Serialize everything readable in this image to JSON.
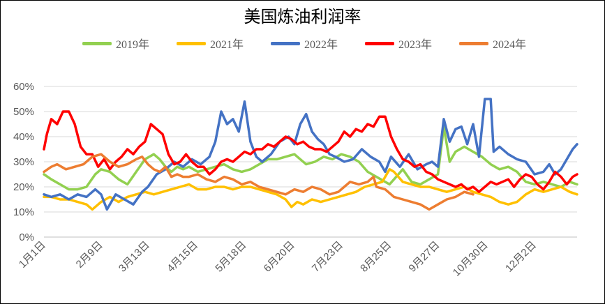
{
  "chart_data": {
    "type": "line",
    "title": "美国炼油利润率",
    "xlabel": "",
    "ylabel": "",
    "ylim": [
      0,
      60
    ],
    "xlim": [
      1,
      365
    ],
    "y_tick_labels": [
      "0%",
      "10%",
      "20%",
      "30%",
      "40%",
      "50%",
      "60%"
    ],
    "x_tick_labels": [
      "1月1日",
      "2月9日",
      "3月13日",
      "4月15日",
      "5月18日",
      "6月20日",
      "7月23日",
      "8月25日",
      "9月27日",
      "10月30日",
      "12月2日"
    ],
    "x_tick_days": [
      1,
      40,
      72,
      105,
      138,
      171,
      204,
      237,
      270,
      303,
      336
    ],
    "grid": "horizontal",
    "legend_position": "top",
    "series": [
      {
        "name": "2019年",
        "color": "#92D050",
        "x": [
          1,
          6,
          12,
          18,
          24,
          30,
          36,
          40,
          46,
          52,
          58,
          64,
          70,
          76,
          80,
          84,
          88,
          92,
          96,
          100,
          106,
          112,
          118,
          124,
          130,
          136,
          142,
          148,
          154,
          160,
          166,
          172,
          176,
          180,
          186,
          192,
          198,
          204,
          210,
          216,
          222,
          228,
          234,
          237,
          240,
          246,
          252,
          258,
          264,
          270,
          274,
          278,
          282,
          288,
          294,
          300,
          306,
          312,
          318,
          324,
          330,
          336,
          342,
          348,
          354,
          360,
          365
        ],
        "y": [
          25,
          23,
          21,
          19,
          19,
          20,
          25,
          27,
          26,
          23,
          21,
          26,
          31,
          33,
          31,
          28,
          26,
          28,
          27,
          28,
          26,
          27,
          28,
          29,
          27,
          26,
          27,
          29,
          31,
          31,
          32,
          33,
          31,
          29,
          30,
          32,
          31,
          33,
          32,
          30,
          26,
          24,
          22,
          21,
          23,
          27,
          22,
          21,
          23,
          25,
          44,
          30,
          34,
          36,
          34,
          32,
          29,
          27,
          28,
          26,
          22,
          21,
          22,
          21,
          20,
          22,
          21
        ]
      },
      {
        "name": "2021年",
        "color": "#FFC000",
        "x": [
          1,
          6,
          12,
          18,
          24,
          30,
          34,
          40,
          46,
          52,
          58,
          64,
          70,
          76,
          82,
          88,
          94,
          100,
          106,
          112,
          118,
          124,
          130,
          136,
          142,
          148,
          154,
          160,
          166,
          170,
          174,
          178,
          184,
          190,
          196,
          202,
          208,
          214,
          220,
          226,
          232,
          237,
          240,
          246,
          252,
          258,
          264,
          270,
          276,
          282,
          288,
          294,
          300,
          306,
          312,
          318,
          324,
          330,
          336,
          342,
          348,
          354,
          360,
          365
        ],
        "y": [
          16,
          16,
          15,
          15,
          14,
          13,
          11,
          14,
          16,
          14,
          16,
          17,
          18,
          17,
          18,
          19,
          20,
          21,
          19,
          19,
          20,
          20,
          19,
          20,
          20,
          19,
          18,
          17,
          15,
          12,
          14,
          13,
          15,
          14,
          15,
          16,
          17,
          18,
          20,
          21,
          22,
          27,
          26,
          22,
          21,
          20,
          20,
          19,
          18,
          19,
          20,
          18,
          17,
          16,
          14,
          13,
          14,
          17,
          19,
          18,
          19,
          20,
          18,
          17
        ]
      },
      {
        "name": "2022年",
        "color": "#4472C4",
        "x": [
          1,
          6,
          12,
          18,
          24,
          30,
          36,
          40,
          44,
          50,
          56,
          62,
          68,
          72,
          78,
          84,
          90,
          96,
          102,
          108,
          114,
          118,
          122,
          126,
          130,
          134,
          138,
          142,
          146,
          150,
          156,
          162,
          168,
          172,
          176,
          180,
          184,
          188,
          192,
          196,
          200,
          206,
          212,
          218,
          224,
          230,
          234,
          238,
          244,
          250,
          256,
          262,
          266,
          270,
          274,
          278,
          282,
          286,
          290,
          294,
          298,
          302,
          306,
          308,
          312,
          318,
          324,
          330,
          336,
          342,
          346,
          350,
          354,
          358,
          362,
          365
        ],
        "y": [
          17,
          16,
          17,
          15,
          17,
          16,
          19,
          17,
          11,
          17,
          15,
          13,
          18,
          20,
          25,
          27,
          30,
          28,
          31,
          29,
          32,
          38,
          50,
          45,
          47,
          42,
          54,
          38,
          32,
          30,
          33,
          38,
          40,
          37,
          45,
          49,
          42,
          39,
          37,
          33,
          32,
          30,
          31,
          35,
          32,
          30,
          26,
          32,
          28,
          33,
          27,
          29,
          30,
          28,
          47,
          38,
          43,
          44,
          37,
          45,
          32,
          55,
          55,
          34,
          36,
          33,
          31,
          30,
          25,
          26,
          29,
          25,
          27,
          31,
          35,
          37
        ]
      },
      {
        "name": "2023年",
        "color": "#FF0000",
        "x": [
          1,
          3,
          6,
          10,
          14,
          18,
          22,
          26,
          30,
          34,
          38,
          42,
          46,
          50,
          54,
          58,
          62,
          66,
          70,
          74,
          78,
          82,
          86,
          90,
          94,
          98,
          102,
          106,
          110,
          114,
          118,
          122,
          126,
          130,
          134,
          138,
          142,
          146,
          150,
          154,
          158,
          162,
          166,
          170,
          174,
          178,
          182,
          186,
          190,
          194,
          198,
          202,
          206,
          210,
          214,
          218,
          222,
          226,
          230,
          234,
          238,
          242,
          246,
          250,
          254,
          258,
          262,
          266,
          270,
          274,
          278,
          282,
          286,
          290,
          294,
          298,
          302,
          306,
          310,
          314,
          318,
          322,
          326,
          330,
          334,
          338,
          342,
          346,
          350,
          354,
          358,
          362,
          365
        ],
        "y": [
          35,
          41,
          47,
          45,
          50,
          50,
          45,
          36,
          33,
          33,
          28,
          31,
          27,
          30,
          32,
          35,
          33,
          36,
          38,
          45,
          43,
          41,
          33,
          29,
          30,
          33,
          30,
          28,
          28,
          25,
          27,
          30,
          31,
          30,
          32,
          34,
          33,
          35,
          35,
          37,
          36,
          38,
          40,
          39,
          37,
          38,
          36,
          35,
          35,
          34,
          36,
          38,
          42,
          40,
          43,
          42,
          45,
          44,
          48,
          48,
          40,
          35,
          31,
          30,
          28,
          29,
          26,
          25,
          23,
          22,
          21,
          20,
          21,
          19,
          20,
          18,
          20,
          22,
          21,
          22,
          23,
          20,
          23,
          25,
          24,
          21,
          19,
          22,
          26,
          24,
          21,
          24,
          25
        ]
      },
      {
        "name": "2024年",
        "color": "#ED7D31",
        "x": [
          1,
          6,
          10,
          16,
          22,
          28,
          34,
          40,
          46,
          52,
          58,
          64,
          68,
          72,
          76,
          80,
          84,
          88,
          92,
          96,
          100,
          106,
          112,
          118,
          124,
          130,
          136,
          142,
          148,
          154,
          160,
          166,
          172,
          178,
          184,
          190,
          196,
          202,
          206,
          210,
          216,
          222,
          226,
          228,
          234,
          240,
          246,
          252,
          258,
          264,
          270,
          276,
          282,
          288,
          294
        ],
        "y": [
          26,
          28,
          29,
          27,
          28,
          29,
          32,
          33,
          30,
          28,
          29,
          31,
          32,
          29,
          27,
          26,
          28,
          24,
          25,
          24,
          24,
          25,
          23,
          22,
          24,
          23,
          21,
          22,
          20,
          19,
          18,
          17,
          19,
          18,
          20,
          19,
          17,
          18,
          20,
          22,
          21,
          22,
          24,
          20,
          19,
          16,
          15,
          14,
          13,
          11,
          13,
          15,
          16,
          18,
          17
        ]
      }
    ]
  }
}
